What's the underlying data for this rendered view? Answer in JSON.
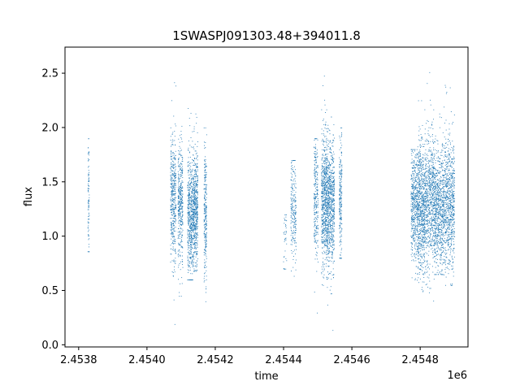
{
  "chart_data": {
    "type": "scatter",
    "title": "1SWASPJ091303.48+394011.8",
    "xlabel": "time",
    "ylabel": "flux",
    "x_offset_label": "1e6",
    "xlim": [
      2453760,
      2454940
    ],
    "ylim": [
      -0.02,
      2.74
    ],
    "x_ticks": [
      2453800,
      2454000,
      2454200,
      2454400,
      2454600,
      2454800
    ],
    "x_tick_labels": [
      "2.4538",
      "2.4540",
      "2.4542",
      "2.4544",
      "2.4546",
      "2.4548"
    ],
    "y_ticks": [
      0.0,
      0.5,
      1.0,
      1.5,
      2.0,
      2.5
    ],
    "y_tick_labels": [
      "0.0",
      "0.5",
      "1.0",
      "1.5",
      "2.0",
      "2.5"
    ],
    "grid": false,
    "marker_color": "#1f77b4",
    "series": [
      {
        "clusters": [
          {
            "x_start": 2453826,
            "x_end": 2453830,
            "y_center": 1.35,
            "y_spread": 0.28,
            "y_min": 0.86,
            "y_max": 1.9,
            "points": 90
          },
          {
            "x_start": 2454068,
            "x_end": 2454084,
            "y_center": 1.35,
            "y_spread": 0.28,
            "y_min": 0.15,
            "y_max": 2.48,
            "points": 420
          },
          {
            "x_start": 2454090,
            "x_end": 2454104,
            "y_center": 1.3,
            "y_spread": 0.28,
            "y_min": 0.45,
            "y_max": 2.3,
            "points": 380
          },
          {
            "x_start": 2454118,
            "x_end": 2454134,
            "y_center": 1.15,
            "y_spread": 0.28,
            "y_min": 0.6,
            "y_max": 2.3,
            "points": 520
          },
          {
            "x_start": 2454134,
            "x_end": 2454148,
            "y_center": 1.25,
            "y_spread": 0.28,
            "y_min": 0.68,
            "y_max": 2.2,
            "points": 520
          },
          {
            "x_start": 2454166,
            "x_end": 2454174,
            "y_center": 1.2,
            "y_spread": 0.27,
            "y_min": 0.4,
            "y_max": 2.0,
            "points": 260
          },
          {
            "x_start": 2454398,
            "x_end": 2454408,
            "y_center": 1.0,
            "y_spread": 0.22,
            "y_min": 0.7,
            "y_max": 1.2,
            "points": 40
          },
          {
            "x_start": 2454420,
            "x_end": 2454436,
            "y_center": 1.25,
            "y_spread": 0.25,
            "y_min": 0.55,
            "y_max": 1.7,
            "points": 220
          },
          {
            "x_start": 2454488,
            "x_end": 2454500,
            "y_center": 1.35,
            "y_spread": 0.28,
            "y_min": 0.25,
            "y_max": 1.9,
            "points": 260
          },
          {
            "x_start": 2454510,
            "x_end": 2454526,
            "y_center": 1.35,
            "y_spread": 0.3,
            "y_min": 0.55,
            "y_max": 2.53,
            "points": 600
          },
          {
            "x_start": 2454526,
            "x_end": 2454548,
            "y_center": 1.3,
            "y_spread": 0.3,
            "y_min": 0.1,
            "y_max": 2.1,
            "points": 720
          },
          {
            "x_start": 2454562,
            "x_end": 2454570,
            "y_center": 1.35,
            "y_spread": 0.28,
            "y_min": 0.8,
            "y_max": 2.0,
            "points": 220
          },
          {
            "x_start": 2454772,
            "x_end": 2454790,
            "y_center": 1.3,
            "y_spread": 0.26,
            "y_min": 0.6,
            "y_max": 1.8,
            "points": 420
          },
          {
            "x_start": 2454790,
            "x_end": 2454812,
            "y_center": 1.25,
            "y_spread": 0.3,
            "y_min": 0.45,
            "y_max": 2.25,
            "points": 720
          },
          {
            "x_start": 2454812,
            "x_end": 2454840,
            "y_center": 1.35,
            "y_spread": 0.3,
            "y_min": 0.32,
            "y_max": 2.57,
            "points": 700
          },
          {
            "x_start": 2454840,
            "x_end": 2454868,
            "y_center": 1.25,
            "y_spread": 0.28,
            "y_min": 0.65,
            "y_max": 2.2,
            "points": 700
          },
          {
            "x_start": 2454868,
            "x_end": 2454900,
            "y_center": 1.3,
            "y_spread": 0.3,
            "y_min": 0.55,
            "y_max": 2.6,
            "points": 760
          }
        ]
      }
    ]
  }
}
